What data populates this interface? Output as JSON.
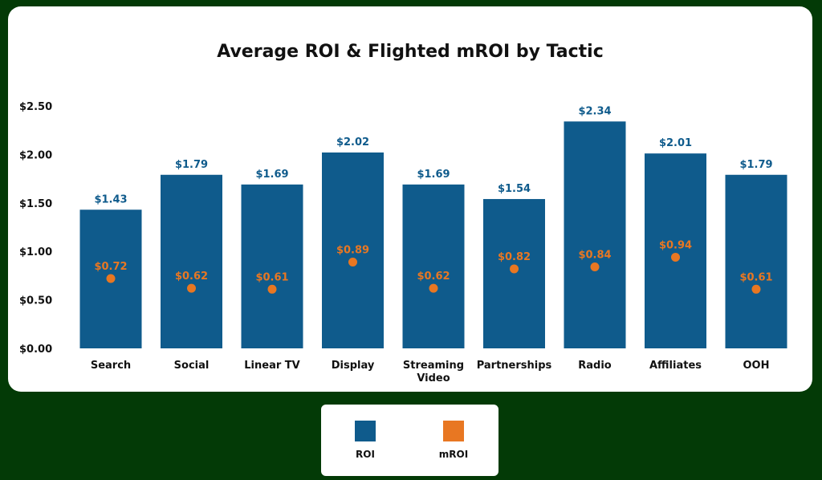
{
  "chart_data": {
    "type": "bar",
    "title": "Average ROI & Flighted mROI by Tactic",
    "categories": [
      "Search",
      "Social",
      "Linear TV",
      "Display",
      "Streaming Video",
      "Partnerships",
      "Radio",
      "Affiliates",
      "OOH"
    ],
    "series": [
      {
        "name": "ROI",
        "type": "bar",
        "color": "#0f5b8c",
        "values": [
          1.43,
          1.79,
          1.69,
          2.02,
          1.69,
          1.54,
          2.34,
          2.01,
          1.79
        ],
        "labels": [
          "$1.43",
          "$1.79",
          "$1.69",
          "$2.02",
          "$1.69",
          "$1.54",
          "$2.34",
          "$2.01",
          "$1.79"
        ]
      },
      {
        "name": "mROI",
        "type": "scatter",
        "color": "#e87722",
        "values": [
          0.72,
          0.62,
          0.61,
          0.89,
          0.62,
          0.82,
          0.84,
          0.94,
          0.61
        ],
        "labels": [
          "$0.72",
          "$0.62",
          "$0.61",
          "$0.89",
          "$0.62",
          "$0.82",
          "$0.84",
          "$0.94",
          "$0.61"
        ]
      }
    ],
    "y_ticks": [
      "$0.00",
      "$0.50",
      "$1.00",
      "$1.50",
      "$2.00",
      "$2.50"
    ],
    "y_tick_values": [
      0,
      0.5,
      1,
      1.5,
      2,
      2.5
    ],
    "ylim": [
      0,
      2.5
    ],
    "grid": false,
    "legend": "bottom-center"
  },
  "legend": {
    "roi_label": "ROI",
    "mroi_label": "mROI"
  },
  "colors": {
    "background": "#033a06",
    "card": "#ffffff",
    "roi": "#0f5b8c",
    "mroi": "#e87722"
  }
}
